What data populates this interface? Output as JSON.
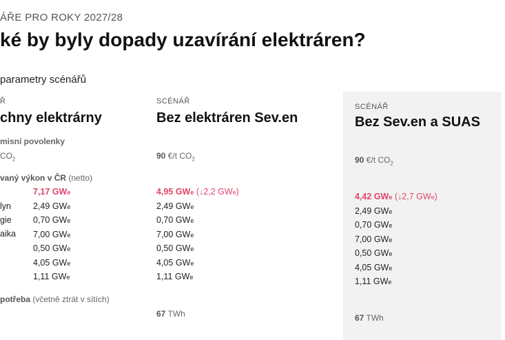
{
  "header": {
    "kicker": "ÁŘE PRO ROKY 2027/28",
    "title": "ké by byly dopady uzavírání elektráren?",
    "subtitle": "parametry scénářů"
  },
  "labels": {
    "permits": "misní povolenky",
    "permits_unit": "CO",
    "capacity": "vaný výkon v ČR",
    "capacity_note": "(netto)",
    "rows": [
      "",
      "lyn",
      "gie",
      "aika",
      "",
      "",
      ""
    ],
    "consumption": "potřeba",
    "consumption_note": "(včetně ztrát v sítích)"
  },
  "unit": "GW",
  "unit_sub": "e",
  "scenarios": [
    {
      "kicker": "Ř",
      "name": "chny elektrárny",
      "total": "7,17",
      "values": [
        "2,49",
        "0,70",
        "7,00",
        "0,50",
        "4,05",
        "1,11"
      ]
    },
    {
      "kicker": "SCÉNÁŘ",
      "name": "Bez elektráren Sev.en",
      "price": "90",
      "price_unit": "€/t CO",
      "total": "4,95",
      "delta": "(↓2,2 GW",
      "values": [
        "2,49",
        "0,70",
        "7,00",
        "0,50",
        "4,05",
        "1,11"
      ],
      "consumption": "67",
      "consumption_unit": "TWh"
    },
    {
      "kicker": "SCÉNÁŘ",
      "name": "Bez Sev.en a SUAS",
      "price": "90",
      "price_unit": "€/t CO",
      "total": "4,42",
      "delta": "(↓2,7 GW",
      "values": [
        "2,49",
        "0,70",
        "7,00",
        "0,50",
        "4,05",
        "1,11"
      ],
      "consumption": "67",
      "consumption_unit": "TWh"
    }
  ],
  "colors": {
    "accent": "#e0466a",
    "panel": "#f2f2f2"
  }
}
